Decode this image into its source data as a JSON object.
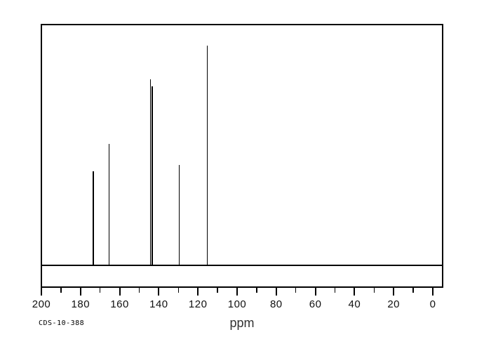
{
  "chart_data": {
    "type": "line",
    "subtype": "nmr-stick-spectrum",
    "title": "",
    "xlabel": "ppm",
    "ylabel": "",
    "grid": false,
    "legend": false,
    "x_axis": {
      "min": 0,
      "max": 200,
      "reversed": true,
      "major_tick_step": 20,
      "minor_tick_step": 10,
      "tick_labels": [
        "200",
        "180",
        "160",
        "140",
        "120",
        "100",
        "80",
        "60",
        "40",
        "20",
        "0"
      ]
    },
    "baseline_intensity": 0,
    "peaks": [
      {
        "ppm": 173.5,
        "rel_intensity": 0.425
      },
      {
        "ppm": 165.4,
        "rel_intensity": 0.55
      },
      {
        "ppm": 144.2,
        "rel_intensity": 0.845
      },
      {
        "ppm": 143.3,
        "rel_intensity": 0.815
      },
      {
        "ppm": 129.5,
        "rel_intensity": 0.455
      },
      {
        "ppm": 115.3,
        "rel_intensity": 1.0
      }
    ]
  },
  "labels": {
    "sample_id": "CDS-10-388",
    "x_axis_title": "ppm"
  },
  "colors": {
    "foreground": "#000000",
    "background": "#ffffff",
    "tick_label": "#111111",
    "axis_title": "#333333"
  }
}
